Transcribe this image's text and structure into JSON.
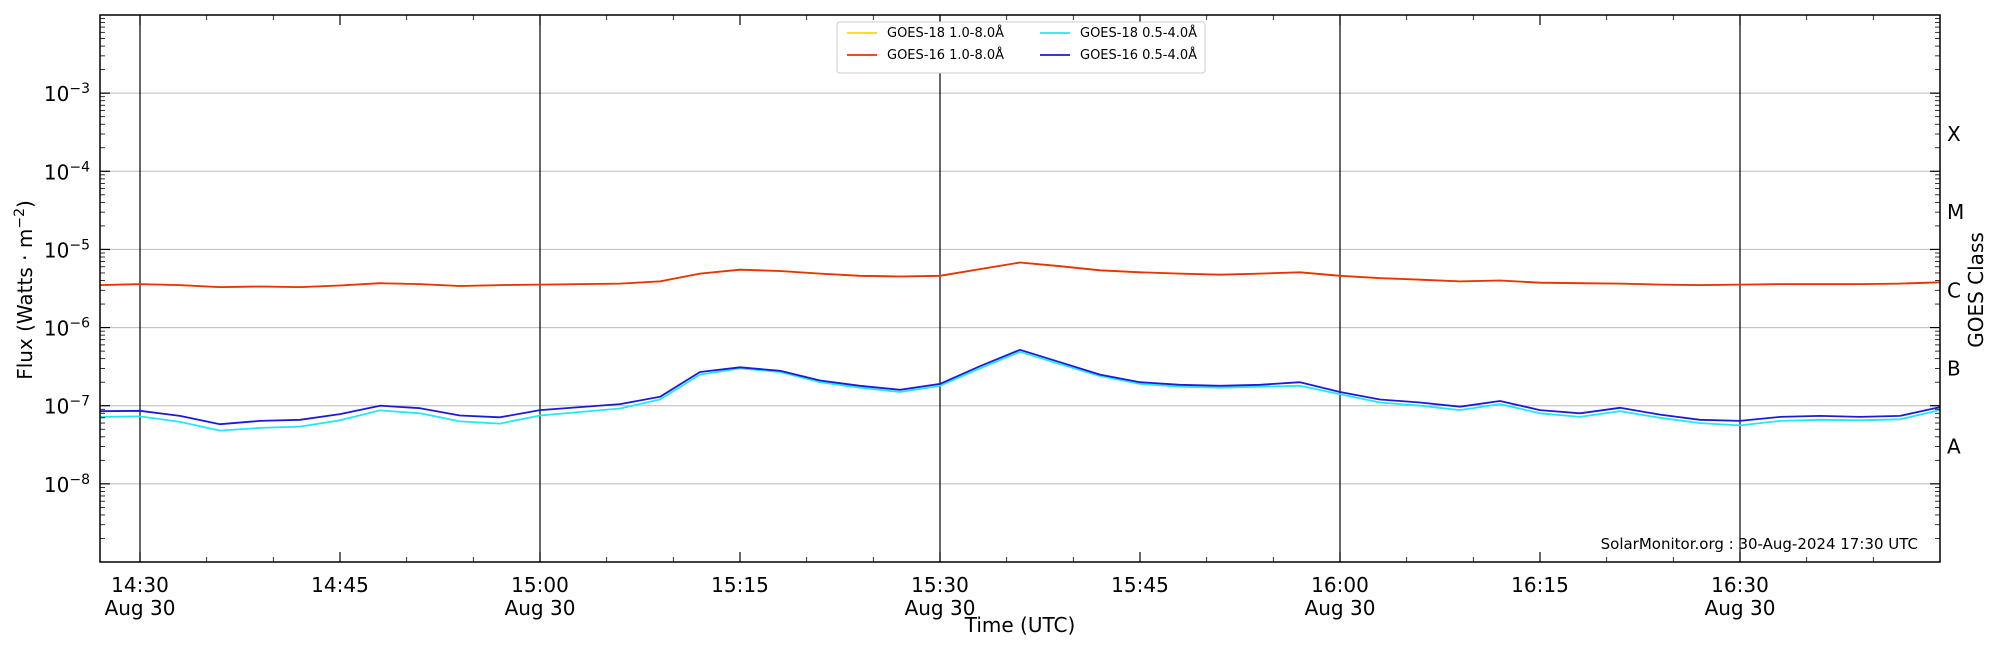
{
  "chart_data": {
    "type": "line",
    "title": "",
    "xlabel": "Time (UTC)",
    "ylabel": "Flux (Watts · m",
    "ylabel_sup": "−2",
    "ylabel_end": ")",
    "y2label": "GOES Class",
    "yscale": "log",
    "ylim": [
      1e-09,
      0.01
    ],
    "xlim": [
      "2024-08-30 14:27",
      "2024-08-30 16:45"
    ],
    "grid": "horizontal",
    "legend_position": "top-center",
    "credit": "SolarMonitor.org : 30-Aug-2024 17:30 UTC",
    "y_ticks": [
      {
        "value": 1e-08,
        "base": "10",
        "exp": "−8"
      },
      {
        "value": 1e-07,
        "base": "10",
        "exp": "−7"
      },
      {
        "value": 1e-06,
        "base": "10",
        "exp": "−6"
      },
      {
        "value": 1e-05,
        "base": "10",
        "exp": "−5"
      },
      {
        "value": 0.0001,
        "base": "10",
        "exp": "−4"
      },
      {
        "value": 0.001,
        "base": "10",
        "exp": "−3"
      }
    ],
    "x_ticks": [
      {
        "time": "14:30",
        "line1": "14:30",
        "line2": "Aug 30"
      },
      {
        "time": "14:45",
        "line1": "14:45",
        "line2": ""
      },
      {
        "time": "15:00",
        "line1": "15:00",
        "line2": "Aug 30"
      },
      {
        "time": "15:15",
        "line1": "15:15",
        "line2": ""
      },
      {
        "time": "15:30",
        "line1": "15:30",
        "line2": "Aug 30"
      },
      {
        "time": "15:45",
        "line1": "15:45",
        "line2": ""
      },
      {
        "time": "16:00",
        "line1": "16:00",
        "line2": "Aug 30"
      },
      {
        "time": "16:15",
        "line1": "16:15",
        "line2": ""
      },
      {
        "time": "16:30",
        "line1": "16:30",
        "line2": "Aug 30"
      }
    ],
    "vertical_lines": [
      "14:30",
      "15:00",
      "15:30",
      "16:00",
      "16:30"
    ],
    "goes_classes": [
      {
        "label": "A",
        "flux": 3e-08
      },
      {
        "label": "B",
        "flux": 3e-07
      },
      {
        "label": "C",
        "flux": 3e-06
      },
      {
        "label": "M",
        "flux": 3e-05
      },
      {
        "label": "X",
        "flux": 0.0003
      }
    ],
    "x": [
      "14:27",
      "14:30",
      "14:33",
      "14:36",
      "14:39",
      "14:42",
      "14:45",
      "14:48",
      "14:51",
      "14:54",
      "14:57",
      "15:00",
      "15:03",
      "15:06",
      "15:09",
      "15:12",
      "15:15",
      "15:18",
      "15:21",
      "15:24",
      "15:27",
      "15:30",
      "15:33",
      "15:36",
      "15:39",
      "15:42",
      "15:45",
      "15:48",
      "15:51",
      "15:54",
      "15:57",
      "16:00",
      "16:03",
      "16:06",
      "16:09",
      "16:12",
      "16:15",
      "16:18",
      "16:21",
      "16:24",
      "16:27",
      "16:30",
      "16:33",
      "16:36",
      "16:39",
      "16:42",
      "16:45"
    ],
    "series": [
      {
        "name": "GOES-18 1.0-8.0",
        "color": "#ffd700",
        "values": [
          3.5e-06,
          3.6e-06,
          3.5e-06,
          3.3e-06,
          3.35e-06,
          3.3e-06,
          3.45e-06,
          3.7e-06,
          3.6e-06,
          3.4e-06,
          3.5e-06,
          3.55e-06,
          3.6e-06,
          3.65e-06,
          3.9e-06,
          4.9e-06,
          5.5e-06,
          5.3e-06,
          4.9e-06,
          4.6e-06,
          4.5e-06,
          4.6e-06,
          5.6e-06,
          6.8e-06,
          6.1e-06,
          5.4e-06,
          5.1e-06,
          4.9e-06,
          4.75e-06,
          4.9e-06,
          5.1e-06,
          4.6e-06,
          4.3e-06,
          4.1e-06,
          3.9e-06,
          4e-06,
          3.75e-06,
          3.7e-06,
          3.65e-06,
          3.55e-06,
          3.5e-06,
          3.55e-06,
          3.6e-06,
          3.6e-06,
          3.6e-06,
          3.65e-06,
          3.8e-06
        ]
      },
      {
        "name": "GOES-16 1.0-8.0",
        "color": "#e8320c",
        "values": [
          3.5e-06,
          3.6e-06,
          3.5e-06,
          3.3e-06,
          3.35e-06,
          3.3e-06,
          3.45e-06,
          3.7e-06,
          3.6e-06,
          3.4e-06,
          3.5e-06,
          3.55e-06,
          3.6e-06,
          3.65e-06,
          3.9e-06,
          4.9e-06,
          5.5e-06,
          5.3e-06,
          4.9e-06,
          4.6e-06,
          4.5e-06,
          4.6e-06,
          5.6e-06,
          6.8e-06,
          6.1e-06,
          5.4e-06,
          5.1e-06,
          4.9e-06,
          4.75e-06,
          4.9e-06,
          5.1e-06,
          4.6e-06,
          4.3e-06,
          4.1e-06,
          3.9e-06,
          4e-06,
          3.75e-06,
          3.7e-06,
          3.65e-06,
          3.55e-06,
          3.5e-06,
          3.55e-06,
          3.6e-06,
          3.6e-06,
          3.6e-06,
          3.65e-06,
          3.8e-06
        ]
      },
      {
        "name": "GOES-18 0.5-4.0",
        "color": "#22e8f0",
        "values": [
          7.2e-08,
          7.3e-08,
          6.2e-08,
          4.8e-08,
          5.2e-08,
          5.4e-08,
          6.5e-08,
          8.7e-08,
          8e-08,
          6.3e-08,
          5.9e-08,
          7.5e-08,
          8.3e-08,
          9.2e-08,
          1.2e-07,
          2.5e-07,
          3e-07,
          2.7e-07,
          2e-07,
          1.7e-07,
          1.5e-07,
          1.8e-07,
          3e-07,
          4.9e-07,
          3.4e-07,
          2.4e-07,
          1.9e-07,
          1.75e-07,
          1.7e-07,
          1.75e-07,
          1.8e-07,
          1.4e-07,
          1.1e-07,
          1e-07,
          8.8e-08,
          1.05e-07,
          8e-08,
          7.2e-08,
          8.5e-08,
          7e-08,
          6e-08,
          5.6e-08,
          6.4e-08,
          6.6e-08,
          6.5e-08,
          6.7e-08,
          8.8e-08
        ]
      },
      {
        "name": "GOES-16 0.5-4.0",
        "color": "#1c1cd8",
        "values": [
          8.5e-08,
          8.6e-08,
          7.4e-08,
          5.8e-08,
          6.4e-08,
          6.6e-08,
          7.8e-08,
          1e-07,
          9.3e-08,
          7.5e-08,
          7.1e-08,
          8.8e-08,
          9.6e-08,
          1.05e-07,
          1.3e-07,
          2.7e-07,
          3.1e-07,
          2.8e-07,
          2.1e-07,
          1.8e-07,
          1.6e-07,
          1.9e-07,
          3.2e-07,
          5.2e-07,
          3.6e-07,
          2.5e-07,
          2e-07,
          1.85e-07,
          1.8e-07,
          1.85e-07,
          2e-07,
          1.5e-07,
          1.2e-07,
          1.1e-07,
          9.7e-08,
          1.15e-07,
          8.8e-08,
          8e-08,
          9.4e-08,
          7.7e-08,
          6.6e-08,
          6.4e-08,
          7.2e-08,
          7.4e-08,
          7.2e-08,
          7.4e-08,
          9.6e-08
        ]
      }
    ],
    "legend_suffix": "Å"
  }
}
